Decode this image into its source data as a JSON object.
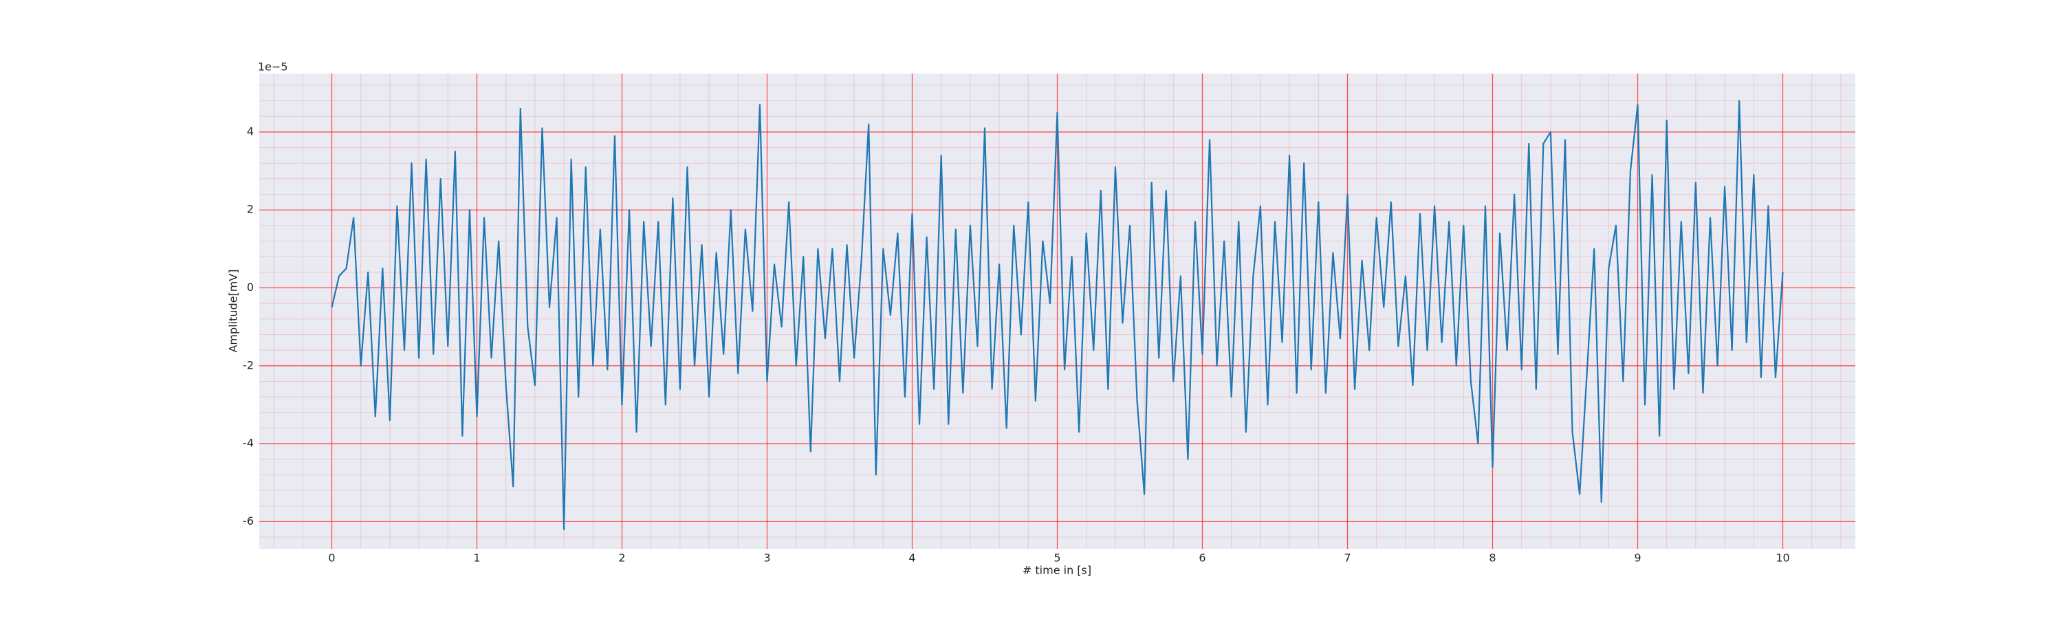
{
  "chart_data": {
    "type": "line",
    "x_label": "# time in [s]",
    "y_label": "Amplitude[mV]",
    "y_offset_text": "1e−5",
    "xlim": [
      -0.5,
      10.5
    ],
    "ylim": [
      -6.7,
      5.5
    ],
    "xticks": [
      0,
      1,
      2,
      3,
      4,
      5,
      6,
      7,
      8,
      9,
      10
    ],
    "yticks": [
      -6,
      -4,
      -2,
      0,
      2,
      4
    ],
    "grid": true,
    "minor_grid": true,
    "grid_color": "#ff0000",
    "background": "#eaeaf2",
    "series": [
      {
        "color": "#1f77b4",
        "x": [
          0,
          0.05,
          0.1,
          0.15,
          0.2,
          0.25,
          0.3,
          0.35,
          0.4,
          0.45,
          0.5,
          0.55,
          0.6,
          0.65,
          0.7,
          0.75,
          0.8,
          0.85,
          0.9,
          0.95,
          1,
          1.05,
          1.1,
          1.15,
          1.2,
          1.25,
          1.3,
          1.35,
          1.4,
          1.45,
          1.5,
          1.55,
          1.6,
          1.65,
          1.7,
          1.75,
          1.8,
          1.85,
          1.9,
          1.95,
          2,
          2.05,
          2.1,
          2.15,
          2.2,
          2.25,
          2.3,
          2.35,
          2.4,
          2.45,
          2.5,
          2.55,
          2.6,
          2.65,
          2.7,
          2.75,
          2.8,
          2.85,
          2.9,
          2.95,
          3,
          3.05,
          3.1,
          3.15,
          3.2,
          3.25,
          3.3,
          3.35,
          3.4,
          3.45,
          3.5,
          3.55,
          3.6,
          3.65,
          3.7,
          3.75,
          3.8,
          3.85,
          3.9,
          3.95,
          4,
          4.05,
          4.1,
          4.15,
          4.2,
          4.25,
          4.3,
          4.35,
          4.4,
          4.45,
          4.5,
          4.55,
          4.6,
          4.65,
          4.7,
          4.75,
          4.8,
          4.85,
          4.9,
          4.95,
          5,
          5.05,
          5.1,
          5.15,
          5.2,
          5.25,
          5.3,
          5.35,
          5.4,
          5.45,
          5.5,
          5.55,
          5.6,
          5.65,
          5.7,
          5.75,
          5.8,
          5.85,
          5.9,
          5.95,
          6,
          6.05,
          6.1,
          6.15,
          6.2,
          6.25,
          6.3,
          6.35,
          6.4,
          6.45,
          6.5,
          6.55,
          6.6,
          6.65,
          6.7,
          6.75,
          6.8,
          6.85,
          6.9,
          6.95,
          7,
          7.05,
          7.1,
          7.15,
          7.2,
          7.25,
          7.3,
          7.35,
          7.4,
          7.45,
          7.5,
          7.55,
          7.6,
          7.65,
          7.7,
          7.75,
          7.8,
          7.85,
          7.9,
          7.95,
          8,
          8.05,
          8.1,
          8.15,
          8.2,
          8.25,
          8.3,
          8.35,
          8.4,
          8.45,
          8.5,
          8.55,
          8.6,
          8.65,
          8.7,
          8.75,
          8.8,
          8.85,
          8.9,
          8.95,
          9,
          9.05,
          9.1,
          9.15,
          9.2,
          9.25,
          9.3,
          9.35,
          9.4,
          9.45,
          9.5,
          9.55,
          9.6,
          9.65,
          9.7,
          9.75,
          9.8,
          9.85,
          9.9,
          9.95,
          10
        ],
        "values": [
          -0.5,
          0.3,
          0.5,
          1.8,
          -2.0,
          0.4,
          -3.3,
          0.5,
          -3.4,
          2.1,
          -1.6,
          3.2,
          -1.8,
          3.3,
          -1.7,
          2.8,
          -1.5,
          3.5,
          -3.8,
          2.0,
          -3.3,
          1.8,
          -1.8,
          1.2,
          -2.5,
          -5.1,
          4.6,
          -1.0,
          -2.5,
          4.1,
          -0.5,
          1.8,
          -6.2,
          3.3,
          -2.8,
          3.1,
          -2.0,
          1.5,
          -2.1,
          3.9,
          -3.0,
          2.0,
          -3.7,
          1.7,
          -1.5,
          1.7,
          -3.0,
          2.3,
          -2.6,
          3.1,
          -2.0,
          1.1,
          -2.8,
          0.9,
          -1.7,
          2.0,
          -2.2,
          1.5,
          -0.6,
          4.7,
          -2.4,
          0.6,
          -1.0,
          2.2,
          -2.0,
          0.8,
          -4.2,
          1.0,
          -1.3,
          1.0,
          -2.4,
          1.1,
          -1.8,
          0.7,
          4.2,
          -4.8,
          1.0,
          -0.7,
          1.4,
          -2.8,
          1.9,
          -3.5,
          1.3,
          -2.6,
          3.4,
          -3.5,
          1.5,
          -2.7,
          1.6,
          -1.5,
          4.1,
          -2.6,
          0.6,
          -3.6,
          1.6,
          -1.2,
          2.2,
          -2.9,
          1.2,
          -0.4,
          4.5,
          -2.1,
          0.8,
          -3.7,
          1.4,
          -1.6,
          2.5,
          -2.6,
          3.1,
          -0.9,
          1.6,
          -2.9,
          -5.3,
          2.7,
          -1.8,
          2.5,
          -2.4,
          0.3,
          -4.4,
          1.7,
          -1.7,
          3.8,
          -2.0,
          1.2,
          -2.8,
          1.7,
          -3.7,
          0.3,
          2.1,
          -3.0,
          1.7,
          -1.4,
          3.4,
          -2.7,
          3.2,
          -2.1,
          2.2,
          -2.7,
          0.9,
          -1.3,
          2.4,
          -2.6,
          0.7,
          -1.6,
          1.8,
          -0.5,
          2.2,
          -1.5,
          0.3,
          -2.5,
          1.9,
          -1.6,
          2.1,
          -1.4,
          1.7,
          -2.0,
          1.6,
          -2.4,
          -4.0,
          2.1,
          -4.6,
          1.4,
          -1.6,
          2.4,
          -2.1,
          3.7,
          -2.6,
          3.7,
          4.0,
          -1.7,
          3.8,
          -3.7,
          -5.3,
          -2.2,
          1.0,
          -5.5,
          0.5,
          1.6,
          -2.4,
          3.0,
          4.7,
          -3.0,
          2.9,
          -3.8,
          4.3,
          -2.6,
          1.7,
          -2.2,
          2.7,
          -2.7,
          1.8,
          -2.0,
          2.6,
          -1.6,
          4.8,
          -1.4,
          2.9,
          -2.3,
          2.1,
          -2.3,
          0.4
        ]
      }
    ]
  }
}
